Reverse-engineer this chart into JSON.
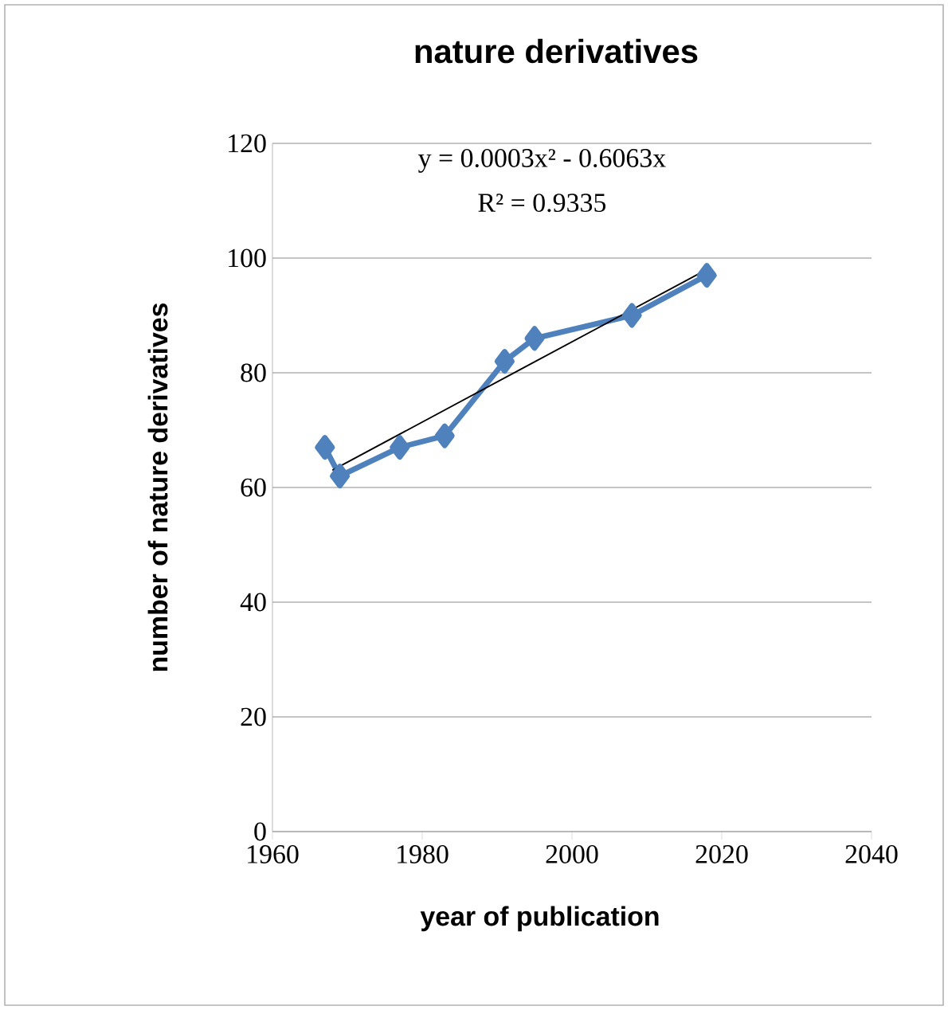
{
  "chart_data": {
    "type": "line",
    "title": "nature derivatives",
    "xlabel": "year of publication",
    "ylabel": "number of nature derivatives",
    "annotations": [
      "y = 0.0003x² - 0.6063x",
      "R² = 0.9335"
    ],
    "xlim": [
      1960,
      2040
    ],
    "xticks": [
      1960,
      1980,
      2000,
      2020,
      2040
    ],
    "ylim": [
      0,
      120
    ],
    "yticks": [
      0,
      20,
      40,
      60,
      80,
      100,
      120
    ],
    "grid": "y",
    "marker": "diamond",
    "series": [
      {
        "color": "#4f81bd",
        "x": [
          1967,
          1969,
          1977,
          1983,
          1991,
          1995,
          2008,
          2018
        ],
        "values": [
          67,
          62,
          67,
          69,
          82,
          86,
          90,
          97
        ]
      },
      {
        "type": "line",
        "marker": "none",
        "color": "#000000",
        "x": [
          1968,
          1993,
          2018
        ],
        "values": [
          63,
          80.5,
          98
        ]
      }
    ]
  }
}
